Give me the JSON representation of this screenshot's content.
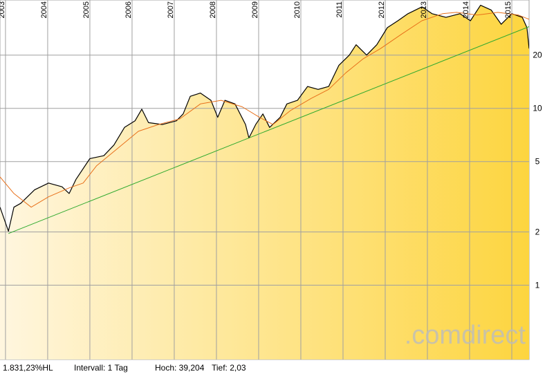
{
  "chart_data": {
    "type": "line",
    "log_scale": true,
    "grid": true,
    "watermark": ".comdirect",
    "footer": [
      "1.831,23%HL",
      "Intervall: 1 Tag",
      "Hoch: 39,204",
      "Tief: 2,03"
    ],
    "xlim": [
      2002.87,
      2015.41
    ],
    "xticks": [
      2003,
      2004,
      2005,
      2006,
      2007,
      2008,
      2009,
      2010,
      2011,
      2012,
      2013,
      2014,
      2015
    ],
    "ylim": [
      0.38,
      41
    ],
    "yticks": [
      1,
      2,
      5,
      10,
      20
    ],
    "area_color_start": "#fff6df",
    "area_color_end": "#fdd53f",
    "series": [
      {
        "color": "#000000",
        "x": [
          2002.87,
          2003.07,
          2003.2,
          2003.36,
          2003.69,
          2004.02,
          2004.34,
          2004.51,
          2004.67,
          2005.0,
          2005.33,
          2005.57,
          2005.82,
          2006.07,
          2006.23,
          2006.39,
          2006.72,
          2007.05,
          2007.21,
          2007.38,
          2007.62,
          2007.87,
          2008.03,
          2008.2,
          2008.44,
          2008.69,
          2008.77,
          2008.93,
          2009.1,
          2009.26,
          2009.51,
          2009.67,
          2009.92,
          2010.16,
          2010.41,
          2010.66,
          2010.9,
          2011.15,
          2011.31,
          2011.56,
          2011.8,
          2012.05,
          2012.3,
          2012.54,
          2012.87,
          2013.11,
          2013.44,
          2013.77,
          2014.02,
          2014.26,
          2014.51,
          2014.75,
          2015.0,
          2015.25,
          2015.36,
          2015.41
        ],
        "values": [
          2.76,
          2.02,
          2.76,
          2.9,
          3.46,
          3.78,
          3.6,
          3.3,
          3.96,
          5.2,
          5.4,
          6.2,
          7.8,
          8.5,
          9.9,
          8.3,
          8.1,
          8.5,
          9.3,
          11.7,
          12.2,
          11.1,
          8.9,
          11.1,
          10.6,
          8.1,
          6.8,
          8.1,
          9.3,
          7.8,
          8.9,
          10.6,
          11.1,
          13.3,
          12.8,
          13.3,
          17.5,
          20,
          22.9,
          20,
          22.9,
          28.6,
          31.3,
          34.3,
          37.5,
          34.3,
          32.7,
          34.3,
          31.3,
          38.3,
          36,
          29.9,
          34.3,
          32.7,
          28.6,
          21.8
        ]
      },
      {
        "color": "#e8701a",
        "x": [
          2002.87,
          2003.2,
          2003.61,
          2004.02,
          2004.51,
          2004.84,
          2005.16,
          2005.66,
          2006.15,
          2006.64,
          2007.13,
          2007.62,
          2008.11,
          2008.61,
          2009.02,
          2009.34,
          2009.75,
          2010.25,
          2010.66,
          2011.07,
          2011.48,
          2011.89,
          2012.38,
          2012.87,
          2013.36,
          2013.69,
          2014.18,
          2014.67,
          2015.16,
          2015.41
        ],
        "values": [
          4.1,
          3.3,
          2.76,
          3.16,
          3.55,
          3.78,
          4.74,
          5.94,
          7.42,
          8.12,
          8.72,
          10.6,
          11.1,
          10.2,
          8.9,
          8.1,
          9.7,
          11.4,
          12.8,
          15.9,
          19.1,
          21.8,
          26.2,
          31.3,
          34.3,
          34.9,
          33.7,
          34.9,
          33.7,
          31.9
        ]
      },
      {
        "color": "#2faa2f",
        "x": [
          2003.07,
          2015.41
        ],
        "values": [
          1.96,
          29
        ]
      }
    ]
  }
}
